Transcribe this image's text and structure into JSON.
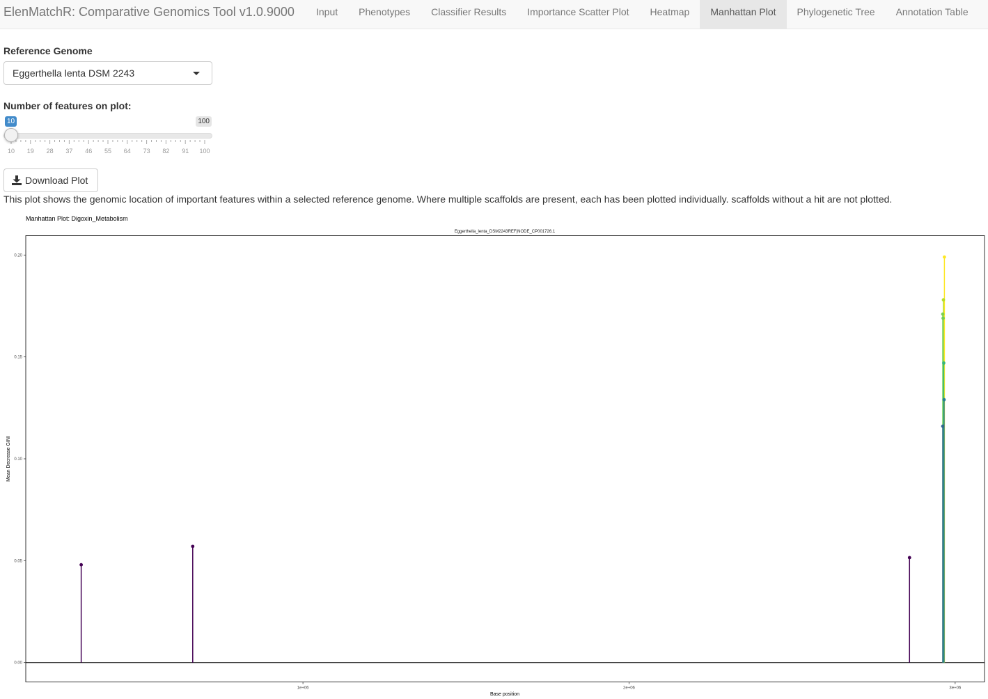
{
  "app": {
    "title": "ElenMatchR: Comparative Genomics Tool v1.0.9000"
  },
  "nav": {
    "tabs": [
      {
        "label": "Input"
      },
      {
        "label": "Phenotypes"
      },
      {
        "label": "Classifier Results"
      },
      {
        "label": "Importance Scatter Plot"
      },
      {
        "label": "Heatmap"
      },
      {
        "label": "Manhattan Plot",
        "active": true
      },
      {
        "label": "Phylogenetic Tree"
      },
      {
        "label": "Annotation Table"
      }
    ]
  },
  "controls": {
    "reference_label": "Reference Genome",
    "reference_value": "Eggerthella lenta DSM 2243",
    "features_label": "Number of features on plot:",
    "slider": {
      "min": 10,
      "max": 100,
      "value": 10,
      "min_label": "10",
      "max_label": "100",
      "tick_labels": [
        "10",
        "19",
        "28",
        "37",
        "46",
        "55",
        "64",
        "73",
        "82",
        "91",
        "100"
      ]
    },
    "download_label": "Download Plot",
    "download_icon": "download-icon"
  },
  "description": "This plot shows the genomic location of important features within a selected reference genome. Where multiple scaffolds are present, each has been plotted individually. scaffolds without a hit are not plotted.",
  "colors": {
    "navbar_bg": "#f8f8f8",
    "active_tab_bg": "#e7e7e7",
    "slider_badge": "#428bca"
  },
  "chart_data": {
    "type": "scatter",
    "title": "Manhattan Plot: Digoxin_Metabolism",
    "subtitle": "Eggerthella_lenta_DSM2243REF|NODE_CP001726.1",
    "xlabel": "Base position",
    "ylabel": "Mean Decrease GINI",
    "xlim": [
      150000,
      3090000
    ],
    "ylim": [
      -0.0095,
      0.2095
    ],
    "x_ticks": [
      1000000,
      2000000,
      3000000
    ],
    "x_tick_labels": [
      "1e+06",
      "2e+06",
      "3e+06"
    ],
    "y_ticks": [
      0,
      0.05,
      0.1,
      0.15,
      0.2
    ],
    "y_tick_labels": [
      "0.00",
      "0.05",
      "0.10",
      "0.15",
      "0.20"
    ],
    "baseline": 0,
    "grid": false,
    "point_style": "lollipop",
    "color_scale": "viridis",
    "points": [
      {
        "x": 320000,
        "y": 0.048,
        "color": "#440154"
      },
      {
        "x": 662000,
        "y": 0.057,
        "color": "#440154"
      },
      {
        "x": 2860000,
        "y": 0.0515,
        "color": "#440154"
      },
      {
        "x": 2962000,
        "y": 0.116,
        "color": "#31688e"
      },
      {
        "x": 2966000,
        "y": 0.129,
        "color": "#26828e"
      },
      {
        "x": 2965000,
        "y": 0.147,
        "color": "#35b779"
      },
      {
        "x": 2963000,
        "y": 0.169,
        "color": "#6ece58"
      },
      {
        "x": 2962000,
        "y": 0.171,
        "color": "#7ad151"
      },
      {
        "x": 2964000,
        "y": 0.178,
        "color": "#b5de2b"
      },
      {
        "x": 2967000,
        "y": 0.199,
        "color": "#fde725"
      }
    ]
  }
}
